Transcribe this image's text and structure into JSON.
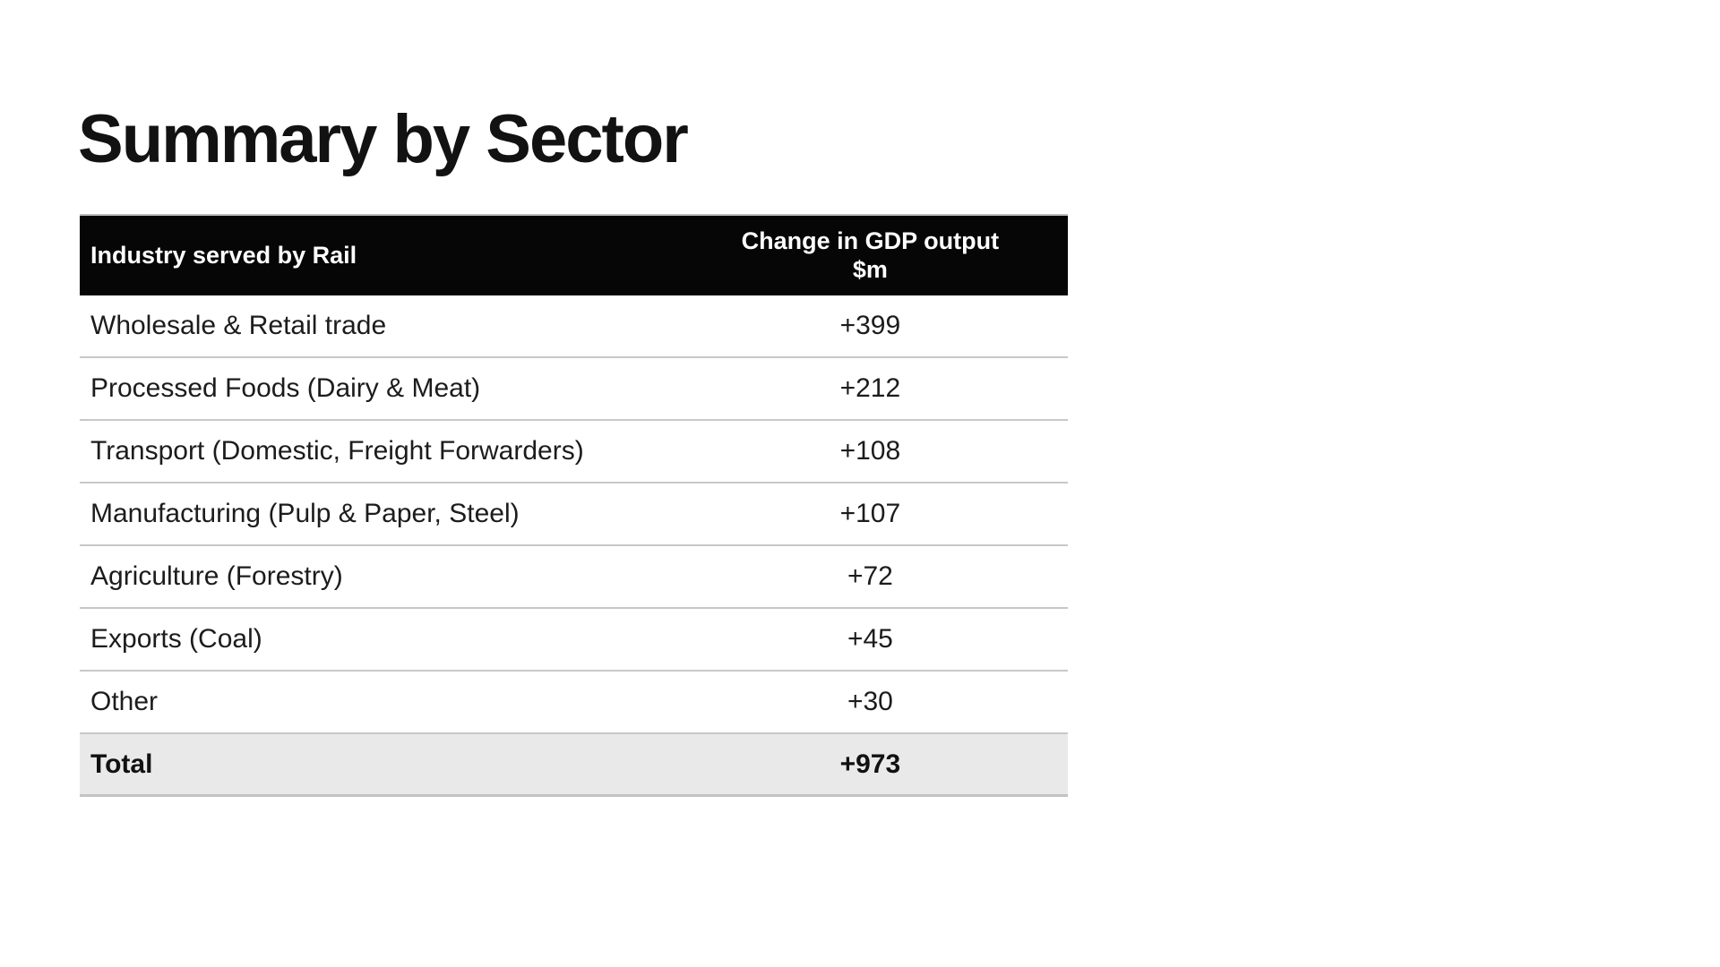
{
  "page": {
    "title": "Summary by Sector"
  },
  "table": {
    "header": {
      "industry_label": "Industry served by Rail",
      "value_label_line1": "Change in GDP output",
      "value_label_line2": "$m"
    },
    "rows": [
      {
        "label": "Wholesale & Retail trade",
        "value": "+399"
      },
      {
        "label": "Processed Foods (Dairy & Meat)",
        "value": "+212"
      },
      {
        "label": "Transport (Domestic, Freight Forwarders)",
        "value": "+108"
      },
      {
        "label": "Manufacturing (Pulp & Paper, Steel)",
        "value": "+107"
      },
      {
        "label": "Agriculture (Forestry)",
        "value": "+72"
      },
      {
        "label": "Exports (Coal)",
        "value": "+45"
      },
      {
        "label": "Other",
        "value": "+30"
      }
    ],
    "total": {
      "label": "Total",
      "value": "+973"
    }
  },
  "colors": {
    "header_background": "#060606",
    "header_text": "#ffffff",
    "body_text": "#1c1c1c",
    "row_divider": "#c8c8c8",
    "total_background": "#e9e9e9",
    "total_border": "#c3c3c3",
    "page_background": "#ffffff"
  }
}
